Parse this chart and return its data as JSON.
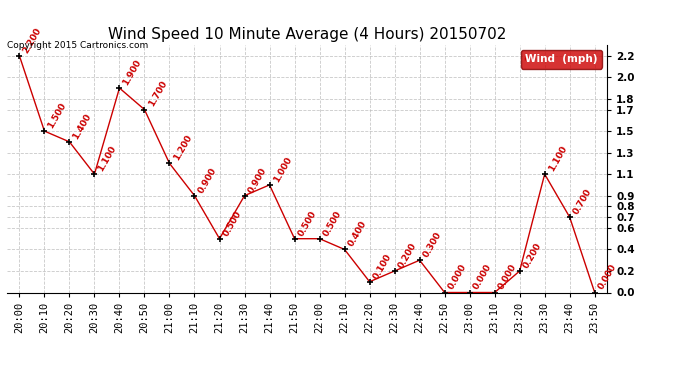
{
  "title": "Wind Speed 10 Minute Average (4 Hours) 20150702",
  "copyright": "Copyright 2015 Cartronics.com",
  "legend_label": "Wind  (mph)",
  "times": [
    "20:00",
    "20:10",
    "20:20",
    "20:30",
    "20:40",
    "20:50",
    "21:00",
    "21:10",
    "21:20",
    "21:30",
    "21:40",
    "21:50",
    "22:00",
    "22:10",
    "22:20",
    "22:30",
    "22:40",
    "22:50",
    "23:00",
    "23:10",
    "23:20",
    "23:30",
    "23:40",
    "23:50"
  ],
  "values": [
    2.2,
    1.5,
    1.4,
    1.1,
    1.9,
    1.7,
    1.2,
    0.9,
    0.5,
    0.9,
    1.0,
    0.5,
    0.5,
    0.4,
    0.1,
    0.2,
    0.3,
    0.0,
    0.0,
    0.0,
    0.2,
    1.1,
    0.7,
    0.0
  ],
  "line_color": "#cc0000",
  "marker_color": "#000000",
  "bg_color": "#ffffff",
  "grid_color": "#bbbbbb",
  "label_color": "#cc0000",
  "ylim_min": 0.0,
  "ylim_max": 2.3,
  "yticks": [
    0.0,
    0.2,
    0.4,
    0.6,
    0.7,
    0.8,
    0.9,
    1.1,
    1.3,
    1.5,
    1.7,
    1.8,
    2.0,
    2.2
  ],
  "title_fontsize": 11,
  "tick_fontsize": 7.5,
  "legend_bg": "#cc0000",
  "legend_text_color": "#ffffff"
}
